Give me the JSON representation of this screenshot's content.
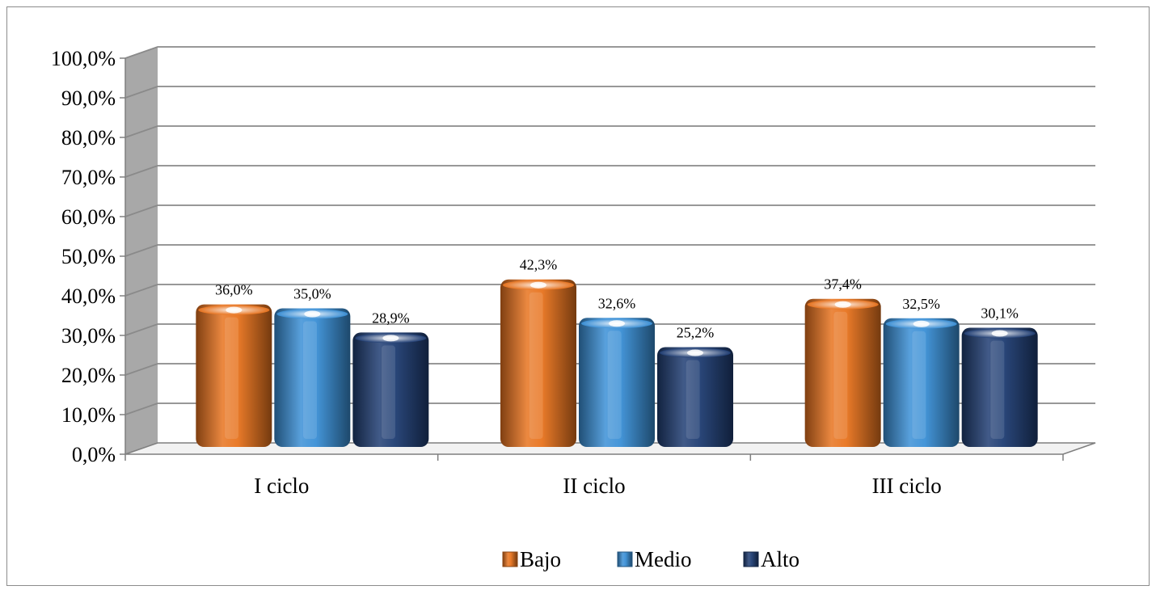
{
  "chart_data": {
    "type": "bar",
    "categories": [
      "I ciclo",
      "II ciclo",
      "III ciclo"
    ],
    "series": [
      {
        "name": "Bajo",
        "values": [
          36.0,
          42.3,
          37.4
        ],
        "labels": [
          "36,0%",
          "42,3%",
          "37,4%"
        ],
        "color": "#e8731e"
      },
      {
        "name": "Medio",
        "values": [
          35.0,
          32.6,
          32.5
        ],
        "labels": [
          "35,0%",
          "32,6%",
          "32,5%"
        ],
        "color": "#3a8fd6"
      },
      {
        "name": "Alto",
        "values": [
          28.9,
          25.2,
          30.1
        ],
        "labels": [
          "28,9%",
          "25,2%",
          "30,1%"
        ],
        "color": "#1f3d73"
      }
    ],
    "yticks": [
      "0,0%",
      "10,0%",
      "20,0%",
      "30,0%",
      "40,0%",
      "50,0%",
      "60,0%",
      "70,0%",
      "80,0%",
      "90,0%",
      "100,0%"
    ],
    "ylim": [
      0,
      100
    ],
    "title": "",
    "xlabel": "",
    "ylabel": "",
    "grid": true,
    "legend_position": "bottom",
    "style": "3d-cylinder"
  }
}
